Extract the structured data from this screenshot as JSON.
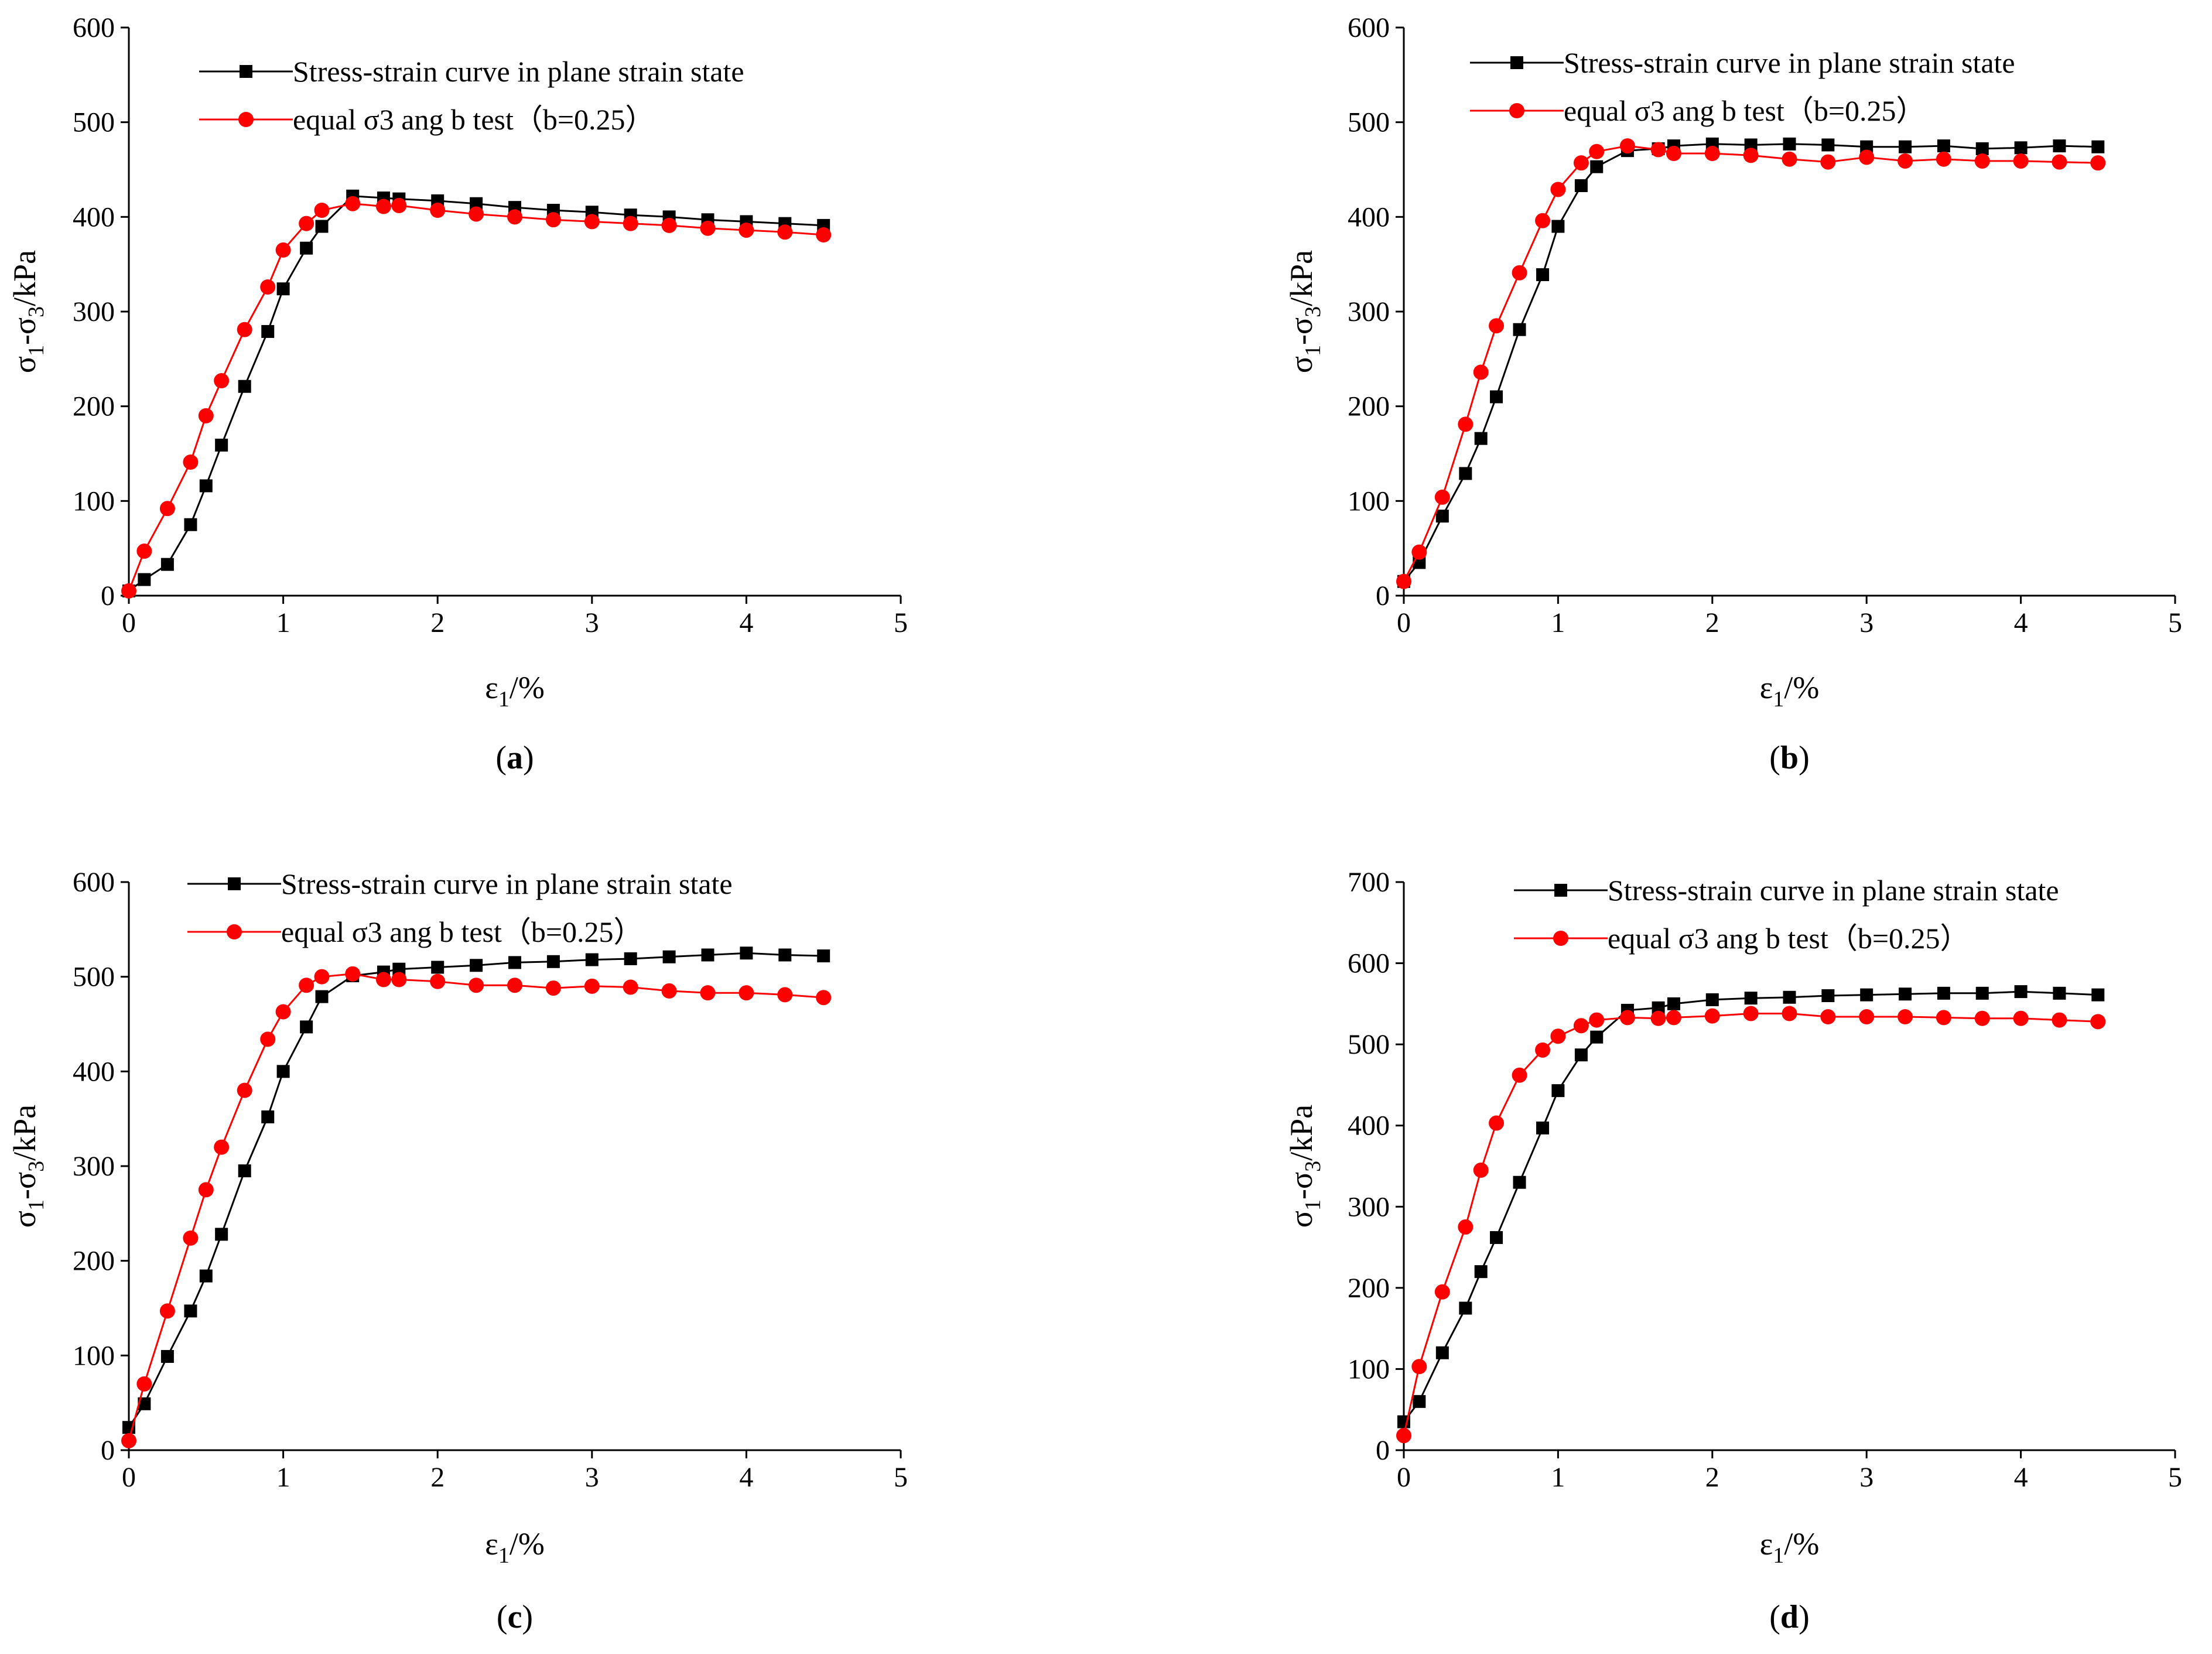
{
  "colors": {
    "series_black": "#000000",
    "series_red": "#ff0000",
    "axis": "#000000",
    "background": "#ffffff"
  },
  "chart_data": [
    {
      "panel": "a",
      "type": "line",
      "xlabel_symbol": "ε",
      "xlabel_sub": "1",
      "xlabel_unit": "/%",
      "ylabel_a": "σ",
      "ylabel_sub1": "1",
      "ylabel_mid": "-σ",
      "ylabel_sub3": "3",
      "ylabel_unit": "/kPa",
      "xlim": [
        0,
        5
      ],
      "ylim": [
        0,
        600
      ],
      "xticks": [
        0,
        1,
        2,
        3,
        4,
        5
      ],
      "yticks": [
        0,
        100,
        200,
        300,
        400,
        500,
        600
      ],
      "legend_position": "top",
      "series": [
        {
          "name": "Stress-strain curve in plane strain state",
          "marker": "square",
          "color": "#000000",
          "x": [
            0,
            0.1,
            0.25,
            0.4,
            0.5,
            0.6,
            0.75,
            0.9,
            1.0,
            1.15,
            1.25,
            1.45,
            1.65,
            1.75,
            2.0,
            2.25,
            2.5,
            2.75,
            3.0,
            3.25,
            3.5,
            3.75,
            4.0,
            4.25,
            4.5
          ],
          "y": [
            5,
            17,
            33,
            75,
            116,
            159,
            221,
            279,
            324,
            367,
            390,
            422,
            420,
            419,
            417,
            414,
            410,
            407,
            405,
            402,
            400,
            397,
            395,
            393,
            391
          ]
        },
        {
          "name": "equal σ3 ang b test（b=0.25）",
          "marker": "circle",
          "color": "#ff0000",
          "x": [
            0,
            0.1,
            0.25,
            0.4,
            0.5,
            0.6,
            0.75,
            0.9,
            1.0,
            1.15,
            1.25,
            1.45,
            1.65,
            1.75,
            2.0,
            2.25,
            2.5,
            2.75,
            3.0,
            3.25,
            3.5,
            3.75,
            4.0,
            4.25,
            4.5
          ],
          "y": [
            5,
            47,
            92,
            141,
            190,
            227,
            281,
            326,
            365,
            393,
            407,
            414,
            411,
            412,
            407,
            403,
            400,
            397,
            395,
            393,
            391,
            388,
            386,
            384,
            381
          ]
        }
      ]
    },
    {
      "panel": "b",
      "type": "line",
      "xlabel_symbol": "ε",
      "xlabel_sub": "1",
      "xlabel_unit": "/%",
      "ylabel_a": "σ",
      "ylabel_sub1": "1",
      "ylabel_mid": "-σ",
      "ylabel_sub3": "3",
      "ylabel_unit": "/kPa",
      "xlim": [
        0,
        5
      ],
      "ylim": [
        0,
        600
      ],
      "xticks": [
        0,
        1,
        2,
        3,
        4,
        5
      ],
      "yticks": [
        0,
        100,
        200,
        300,
        400,
        500,
        600
      ],
      "legend_position": "top",
      "series": [
        {
          "name": "Stress-strain curve in plane strain state",
          "marker": "square",
          "color": "#000000",
          "x": [
            0,
            0.1,
            0.25,
            0.4,
            0.5,
            0.6,
            0.75,
            0.9,
            1.0,
            1.15,
            1.25,
            1.45,
            1.65,
            1.75,
            2.0,
            2.25,
            2.5,
            2.75,
            3.0,
            3.25,
            3.5,
            3.75,
            4.0,
            4.25,
            4.5
          ],
          "y": [
            15,
            35,
            84,
            129,
            166,
            210,
            281,
            339,
            390,
            433,
            453,
            470,
            472,
            475,
            477,
            476,
            477,
            476,
            474,
            474,
            475,
            472,
            473,
            475,
            474
          ]
        },
        {
          "name": "equal σ3 ang b test（b=0.25）",
          "marker": "circle",
          "color": "#ff0000",
          "x": [
            0,
            0.1,
            0.25,
            0.4,
            0.5,
            0.6,
            0.75,
            0.9,
            1.0,
            1.15,
            1.25,
            1.45,
            1.65,
            1.75,
            2.0,
            2.25,
            2.5,
            2.75,
            3.0,
            3.25,
            3.5,
            3.75,
            4.0,
            4.25,
            4.5
          ],
          "y": [
            15,
            46,
            104,
            181,
            236,
            285,
            341,
            396,
            429,
            457,
            469,
            475,
            471,
            467,
            467,
            465,
            461,
            458,
            463,
            459,
            461,
            459,
            459,
            458,
            457
          ]
        }
      ]
    },
    {
      "panel": "c",
      "type": "line",
      "xlabel_symbol": "ε",
      "xlabel_sub": "1",
      "xlabel_unit": "/%",
      "ylabel_a": "σ",
      "ylabel_sub1": "1",
      "ylabel_mid": "-σ",
      "ylabel_sub3": "3",
      "ylabel_unit": "/kPa",
      "xlim": [
        0,
        5
      ],
      "ylim": [
        0,
        600
      ],
      "xticks": [
        0,
        1,
        2,
        3,
        4,
        5
      ],
      "yticks": [
        0,
        100,
        200,
        300,
        400,
        500,
        600
      ],
      "legend_position": "top",
      "series": [
        {
          "name": "Stress-strain curve in plane strain state",
          "marker": "square",
          "color": "#000000",
          "x": [
            0,
            0.1,
            0.25,
            0.4,
            0.5,
            0.6,
            0.75,
            0.9,
            1.0,
            1.15,
            1.25,
            1.45,
            1.65,
            1.75,
            2.0,
            2.25,
            2.5,
            2.75,
            3.0,
            3.25,
            3.5,
            3.75,
            4.0,
            4.25,
            4.5
          ],
          "y": [
            24,
            49,
            99,
            147,
            184,
            228,
            295,
            352,
            400,
            447,
            479,
            501,
            505,
            508,
            510,
            512,
            515,
            516,
            518,
            519,
            521,
            523,
            525,
            523,
            522
          ]
        },
        {
          "name": "equal σ3 ang b test（b=0.25）",
          "marker": "circle",
          "color": "#ff0000",
          "x": [
            0,
            0.1,
            0.25,
            0.4,
            0.5,
            0.6,
            0.75,
            0.9,
            1.0,
            1.15,
            1.25,
            1.45,
            1.65,
            1.75,
            2.0,
            2.25,
            2.5,
            2.75,
            3.0,
            3.25,
            3.5,
            3.75,
            4.0,
            4.25,
            4.5
          ],
          "y": [
            10,
            70,
            147,
            224,
            275,
            320,
            380,
            434,
            463,
            491,
            500,
            503,
            497,
            497,
            495,
            491,
            491,
            488,
            490,
            489,
            485,
            483,
            483,
            481,
            478
          ]
        }
      ]
    },
    {
      "panel": "d",
      "type": "line",
      "xlabel_symbol": "ε",
      "xlabel_sub": "1",
      "xlabel_unit": "/%",
      "ylabel_a": "σ",
      "ylabel_sub1": "1",
      "ylabel_mid": "-σ",
      "ylabel_sub3": "3",
      "ylabel_unit": "/kPa",
      "xlim": [
        0,
        5
      ],
      "ylim": [
        0,
        700
      ],
      "xticks": [
        0,
        1,
        2,
        3,
        4,
        5
      ],
      "yticks": [
        0,
        100,
        200,
        300,
        400,
        500,
        600,
        700
      ],
      "legend_position": "top",
      "series": [
        {
          "name": "Stress-strain curve in plane strain state",
          "marker": "square",
          "color": "#000000",
          "x": [
            0,
            0.1,
            0.25,
            0.4,
            0.5,
            0.6,
            0.75,
            0.9,
            1.0,
            1.15,
            1.25,
            1.45,
            1.65,
            1.75,
            2.0,
            2.25,
            2.5,
            2.75,
            3.0,
            3.25,
            3.5,
            3.75,
            4.0,
            4.25,
            4.5
          ],
          "y": [
            35,
            60,
            120,
            175,
            220,
            262,
            330,
            397,
            443,
            487,
            509,
            542,
            545,
            550,
            555,
            557,
            558,
            560,
            561,
            562,
            563,
            563,
            565,
            563,
            561
          ]
        },
        {
          "name": "equal σ3 ang b test（b=0.25）",
          "marker": "circle",
          "color": "#ff0000",
          "x": [
            0,
            0.1,
            0.25,
            0.4,
            0.5,
            0.6,
            0.75,
            0.9,
            1.0,
            1.15,
            1.25,
            1.45,
            1.65,
            1.75,
            2.0,
            2.25,
            2.5,
            2.75,
            3.0,
            3.25,
            3.5,
            3.75,
            4.0,
            4.25,
            4.5
          ],
          "y": [
            18,
            103,
            195,
            275,
            345,
            403,
            462,
            493,
            510,
            523,
            530,
            533,
            532,
            533,
            535,
            538,
            538,
            534,
            534,
            534,
            533,
            532,
            532,
            530,
            528
          ]
        }
      ]
    }
  ]
}
